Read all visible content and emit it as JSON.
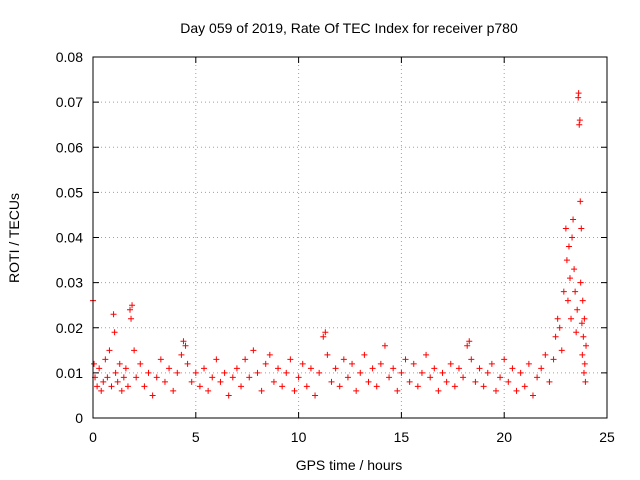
{
  "chart_data": {
    "type": "scatter",
    "title": "Day 059 of 2019, Rate Of TEC Index for receiver p780",
    "xlabel": "GPS time / hours",
    "ylabel": "ROTI / TECUs",
    "xlim": [
      0,
      25
    ],
    "ylim": [
      0,
      0.08
    ],
    "xticks": [
      0,
      5,
      10,
      15,
      20,
      25
    ],
    "xtick_labels": [
      "0",
      "5",
      "10",
      "15",
      "20",
      "25"
    ],
    "yticks": [
      0,
      0.01,
      0.02,
      0.03,
      0.04,
      0.05,
      0.06,
      0.07,
      0.08
    ],
    "ytick_labels": [
      "0",
      "0.01",
      "0.02",
      "0.03",
      "0.04",
      "0.05",
      "0.06",
      "0.07",
      "0.08"
    ],
    "grid": true,
    "marker": "+",
    "color": "#ff0000",
    "series": [
      {
        "points": [
          [
            0.0,
            0.026
          ],
          [
            0.05,
            0.012
          ],
          [
            0.1,
            0.009
          ],
          [
            0.2,
            0.007
          ],
          [
            0.3,
            0.011
          ],
          [
            0.4,
            0.006
          ],
          [
            0.5,
            0.008
          ],
          [
            0.6,
            0.013
          ],
          [
            0.7,
            0.009
          ],
          [
            0.8,
            0.015
          ],
          [
            0.9,
            0.007
          ],
          [
            1.0,
            0.023
          ],
          [
            1.05,
            0.019
          ],
          [
            1.1,
            0.01
          ],
          [
            1.2,
            0.008
          ],
          [
            1.3,
            0.012
          ],
          [
            1.4,
            0.006
          ],
          [
            1.5,
            0.009
          ],
          [
            1.6,
            0.011
          ],
          [
            1.7,
            0.007
          ],
          [
            1.8,
            0.024
          ],
          [
            1.85,
            0.022
          ],
          [
            1.9,
            0.025
          ],
          [
            2.0,
            0.015
          ],
          [
            2.1,
            0.009
          ],
          [
            2.3,
            0.012
          ],
          [
            2.5,
            0.007
          ],
          [
            2.7,
            0.01
          ],
          [
            2.9,
            0.005
          ],
          [
            3.1,
            0.009
          ],
          [
            3.3,
            0.013
          ],
          [
            3.5,
            0.008
          ],
          [
            3.7,
            0.011
          ],
          [
            3.9,
            0.006
          ],
          [
            4.1,
            0.01
          ],
          [
            4.3,
            0.014
          ],
          [
            4.4,
            0.017
          ],
          [
            4.5,
            0.016
          ],
          [
            4.6,
            0.012
          ],
          [
            4.8,
            0.008
          ],
          [
            5.0,
            0.01
          ],
          [
            5.2,
            0.007
          ],
          [
            5.4,
            0.011
          ],
          [
            5.6,
            0.006
          ],
          [
            5.8,
            0.009
          ],
          [
            6.0,
            0.013
          ],
          [
            6.2,
            0.008
          ],
          [
            6.4,
            0.01
          ],
          [
            6.6,
            0.005
          ],
          [
            6.8,
            0.009
          ],
          [
            7.0,
            0.011
          ],
          [
            7.2,
            0.007
          ],
          [
            7.4,
            0.013
          ],
          [
            7.6,
            0.009
          ],
          [
            7.8,
            0.015
          ],
          [
            8.0,
            0.01
          ],
          [
            8.2,
            0.006
          ],
          [
            8.4,
            0.012
          ],
          [
            8.6,
            0.014
          ],
          [
            8.8,
            0.008
          ],
          [
            9.0,
            0.011
          ],
          [
            9.2,
            0.007
          ],
          [
            9.4,
            0.01
          ],
          [
            9.6,
            0.013
          ],
          [
            9.8,
            0.006
          ],
          [
            10.0,
            0.009
          ],
          [
            10.2,
            0.012
          ],
          [
            10.4,
            0.007
          ],
          [
            10.6,
            0.011
          ],
          [
            10.8,
            0.005
          ],
          [
            11.0,
            0.01
          ],
          [
            11.2,
            0.018
          ],
          [
            11.3,
            0.019
          ],
          [
            11.4,
            0.014
          ],
          [
            11.6,
            0.008
          ],
          [
            11.8,
            0.011
          ],
          [
            12.0,
            0.007
          ],
          [
            12.2,
            0.013
          ],
          [
            12.4,
            0.009
          ],
          [
            12.6,
            0.012
          ],
          [
            12.8,
            0.006
          ],
          [
            13.0,
            0.01
          ],
          [
            13.2,
            0.014
          ],
          [
            13.4,
            0.008
          ],
          [
            13.6,
            0.011
          ],
          [
            13.8,
            0.007
          ],
          [
            14.0,
            0.012
          ],
          [
            14.2,
            0.016
          ],
          [
            14.4,
            0.009
          ],
          [
            14.6,
            0.011
          ],
          [
            14.8,
            0.006
          ],
          [
            15.0,
            0.01
          ],
          [
            15.2,
            0.013
          ],
          [
            15.4,
            0.008
          ],
          [
            15.6,
            0.012
          ],
          [
            15.8,
            0.007
          ],
          [
            16.0,
            0.01
          ],
          [
            16.2,
            0.014
          ],
          [
            16.4,
            0.009
          ],
          [
            16.6,
            0.011
          ],
          [
            16.8,
            0.006
          ],
          [
            17.0,
            0.01
          ],
          [
            17.2,
            0.008
          ],
          [
            17.4,
            0.012
          ],
          [
            17.6,
            0.007
          ],
          [
            17.8,
            0.011
          ],
          [
            18.0,
            0.009
          ],
          [
            18.2,
            0.016
          ],
          [
            18.3,
            0.017
          ],
          [
            18.4,
            0.013
          ],
          [
            18.6,
            0.008
          ],
          [
            18.8,
            0.011
          ],
          [
            19.0,
            0.007
          ],
          [
            19.2,
            0.01
          ],
          [
            19.4,
            0.012
          ],
          [
            19.6,
            0.006
          ],
          [
            19.8,
            0.009
          ],
          [
            20.0,
            0.013
          ],
          [
            20.2,
            0.008
          ],
          [
            20.4,
            0.011
          ],
          [
            20.6,
            0.006
          ],
          [
            20.8,
            0.01
          ],
          [
            21.0,
            0.007
          ],
          [
            21.2,
            0.012
          ],
          [
            21.4,
            0.005
          ],
          [
            21.6,
            0.009
          ],
          [
            21.8,
            0.011
          ],
          [
            22.0,
            0.014
          ],
          [
            22.2,
            0.008
          ],
          [
            22.4,
            0.013
          ],
          [
            22.5,
            0.018
          ],
          [
            22.6,
            0.022
          ],
          [
            22.7,
            0.02
          ],
          [
            22.8,
            0.015
          ],
          [
            22.9,
            0.028
          ],
          [
            23.0,
            0.042
          ],
          [
            23.05,
            0.035
          ],
          [
            23.1,
            0.026
          ],
          [
            23.15,
            0.038
          ],
          [
            23.2,
            0.031
          ],
          [
            23.25,
            0.022
          ],
          [
            23.3,
            0.04
          ],
          [
            23.35,
            0.044
          ],
          [
            23.4,
            0.033
          ],
          [
            23.45,
            0.028
          ],
          [
            23.5,
            0.019
          ],
          [
            23.55,
            0.024
          ],
          [
            23.6,
            0.071
          ],
          [
            23.62,
            0.072
          ],
          [
            23.65,
            0.065
          ],
          [
            23.68,
            0.066
          ],
          [
            23.7,
            0.048
          ],
          [
            23.72,
            0.03
          ],
          [
            23.75,
            0.042
          ],
          [
            23.78,
            0.021
          ],
          [
            23.8,
            0.014
          ],
          [
            23.82,
            0.026
          ],
          [
            23.85,
            0.018
          ],
          [
            23.88,
            0.01
          ],
          [
            23.9,
            0.022
          ],
          [
            23.92,
            0.012
          ],
          [
            23.95,
            0.008
          ],
          [
            23.98,
            0.016
          ]
        ]
      }
    ]
  }
}
